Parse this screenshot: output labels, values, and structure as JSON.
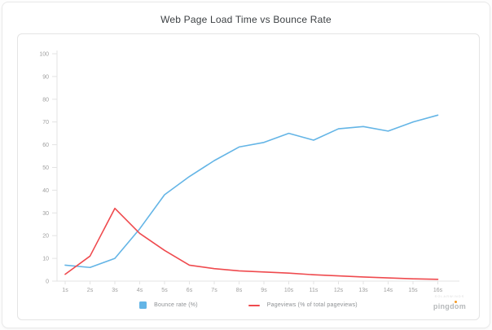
{
  "title": "Web Page Load Time vs Bounce Rate",
  "chart_data": {
    "type": "line",
    "title": "Web Page Load Time vs Bounce Rate",
    "xlabel": "",
    "ylabel": "",
    "categories": [
      "1s",
      "2s",
      "3s",
      "4s",
      "5s",
      "6s",
      "7s",
      "8s",
      "9s",
      "10s",
      "11s",
      "12s",
      "13s",
      "14s",
      "15s",
      "16s"
    ],
    "y_ticks": [
      0,
      10,
      20,
      30,
      40,
      50,
      60,
      70,
      80,
      90,
      100
    ],
    "ylim": [
      0,
      100
    ],
    "grid": false,
    "legend_position": "bottom",
    "series": [
      {
        "name": "Bounce rate  (%)",
        "color": "#64b5e6",
        "marker": "square",
        "values": [
          7,
          6,
          10,
          23,
          38,
          46,
          53,
          59,
          61,
          65,
          62,
          67,
          68,
          66,
          70,
          73
        ]
      },
      {
        "name": "Pageviews (% of total pageviews)",
        "color": "#ef4a4e",
        "marker": "line",
        "values": [
          3,
          11,
          32,
          21,
          13.5,
          7,
          5.5,
          4.5,
          4,
          3.5,
          2.8,
          2.3,
          1.8,
          1.4,
          1,
          0.8
        ]
      }
    ]
  },
  "axis_style": {
    "axis_color": "#e3e3e3",
    "tick_label_color": "#9e9e9e"
  },
  "logo": {
    "brand_top": "SOLARWINDS",
    "text": "pingdom",
    "dot_color": "#f59a23"
  }
}
